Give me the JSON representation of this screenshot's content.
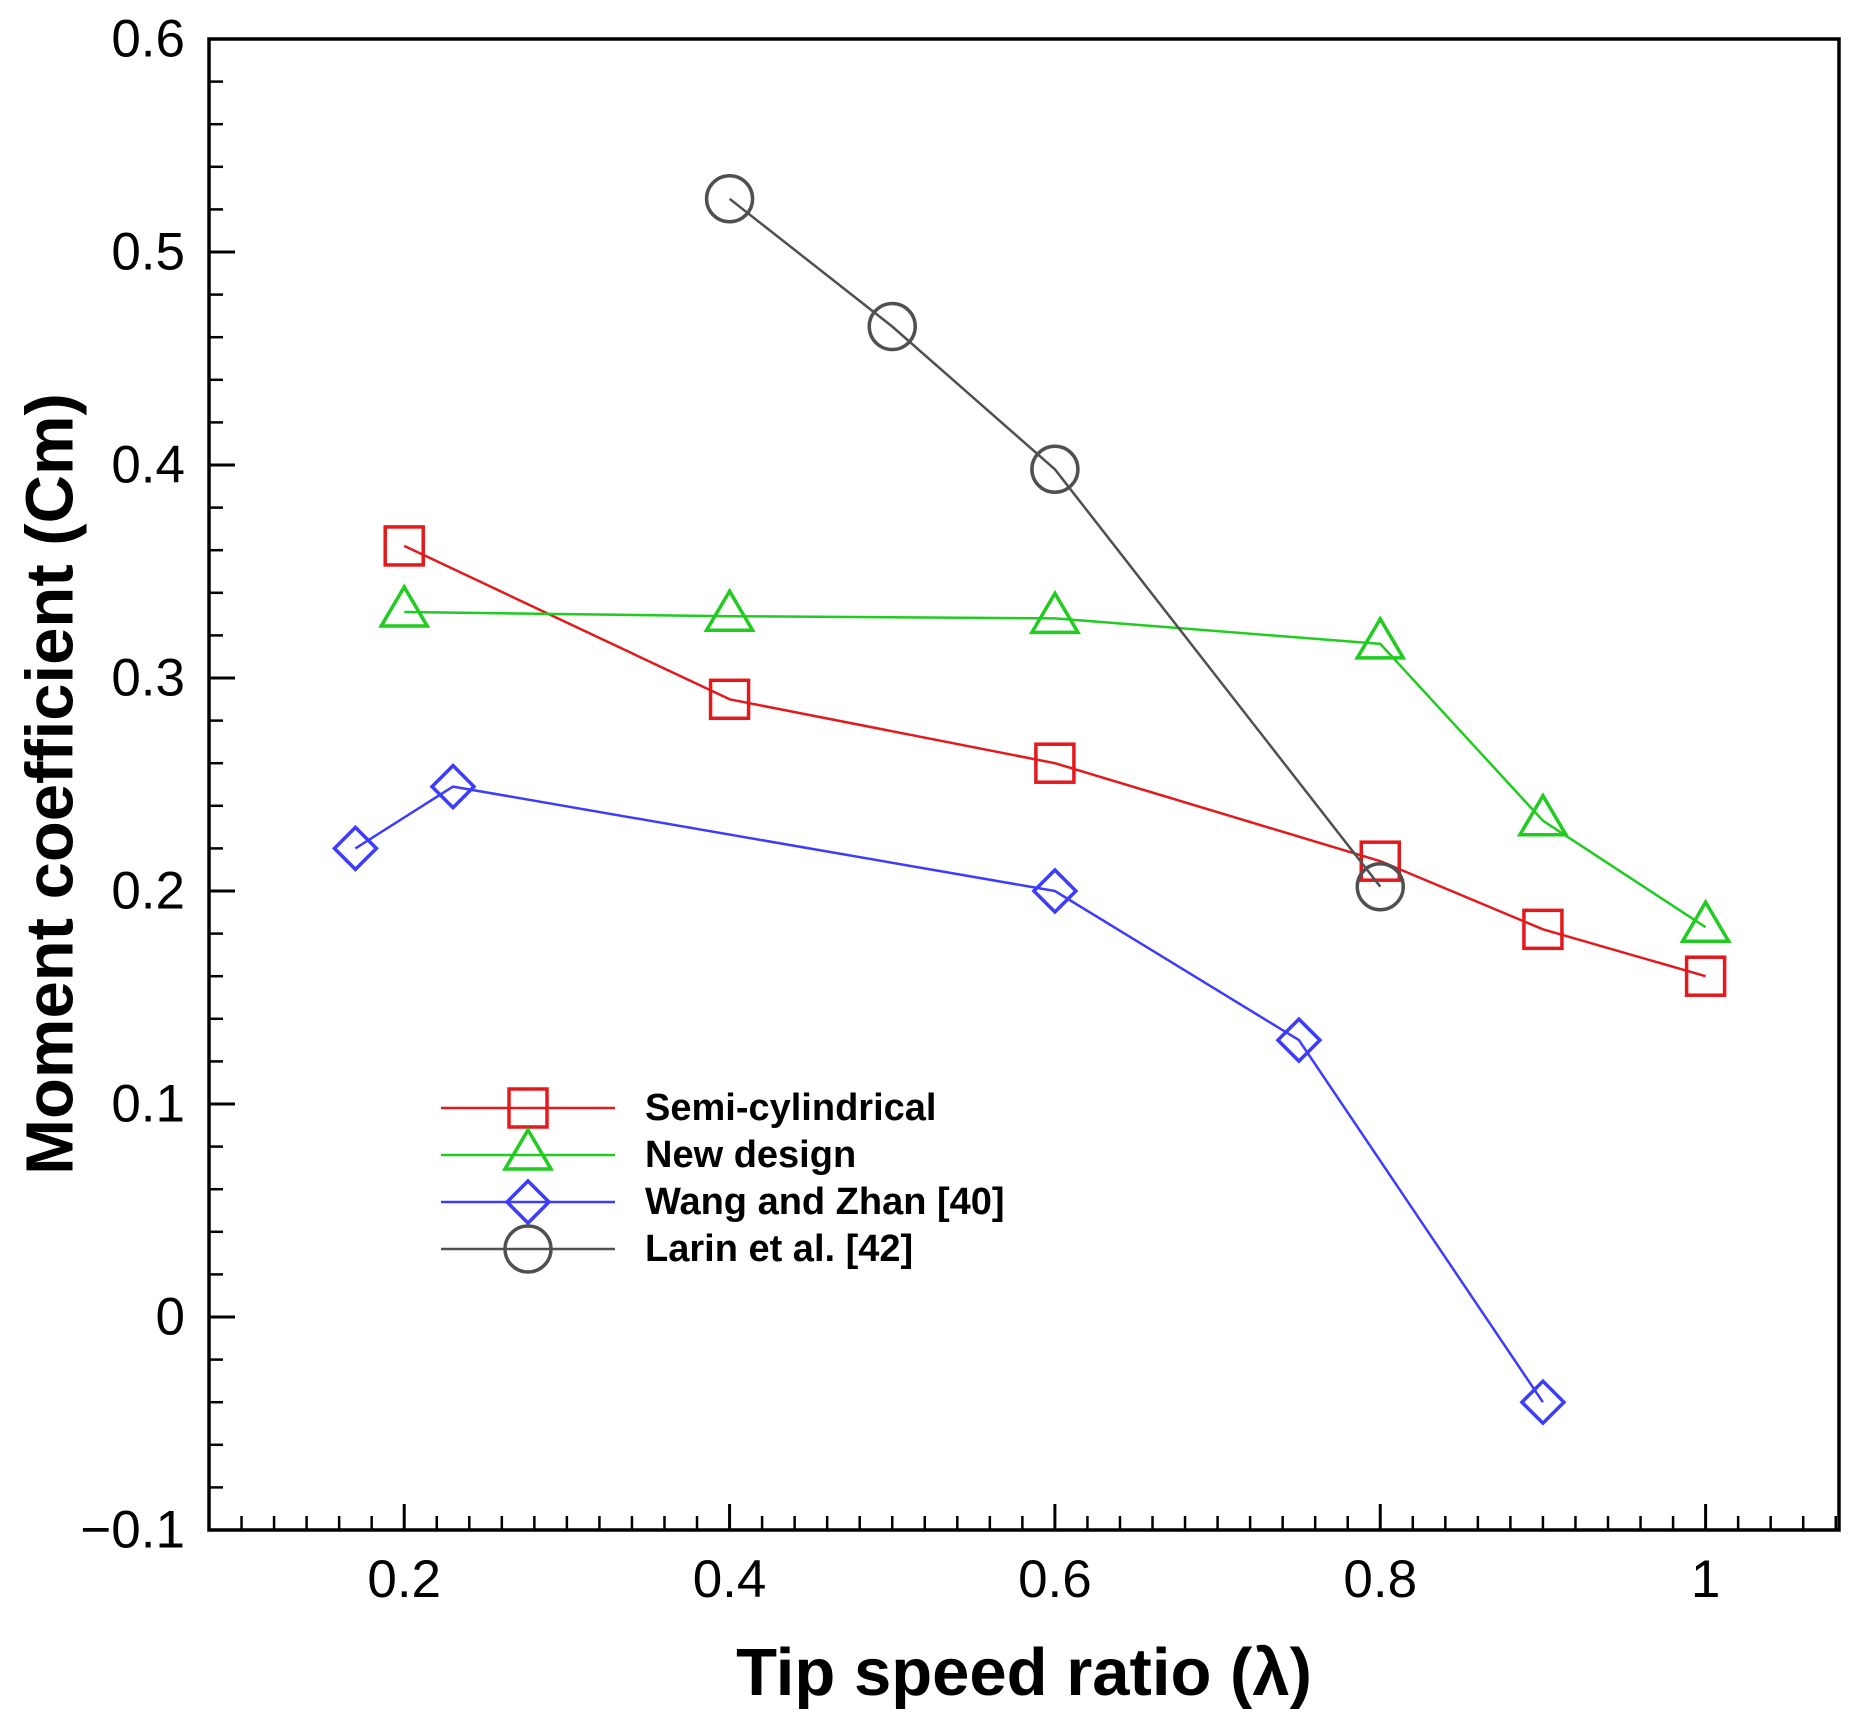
{
  "chart_data": {
    "type": "line",
    "xlabel": "Tip speed ratio (λ)",
    "ylabel": "Moment coefficient (Cm)",
    "xlim": [
      0.08,
      1.082
    ],
    "ylim": [
      -0.1,
      0.6
    ],
    "xticks": [
      0.2,
      0.4,
      0.6,
      0.8,
      1.0
    ],
    "xtick_labels": [
      "0.2",
      "0.4",
      "0.6",
      "0.8",
      "1"
    ],
    "yticks": [
      -0.1,
      0,
      0.1,
      0.2,
      0.3,
      0.4,
      0.5,
      0.6
    ],
    "ytick_labels": [
      "−0.1",
      "0",
      "0.1",
      "0.2",
      "0.3",
      "0.4",
      "0.5",
      "0.6"
    ],
    "x_minor_step": 0.02,
    "y_minor_step": 0.02,
    "grid": false,
    "legend_position": "lower-left",
    "series": [
      {
        "name": "Semi-cylindrical",
        "color": "#e3191c",
        "marker": "square",
        "x": [
          0.2,
          0.4,
          0.6,
          0.8,
          0.9,
          1.0
        ],
        "y": [
          0.362,
          0.29,
          0.26,
          0.214,
          0.182,
          0.16
        ]
      },
      {
        "name": "New design",
        "color": "#1fcc1f",
        "marker": "triangle",
        "x": [
          0.2,
          0.4,
          0.6,
          0.8,
          0.9,
          1.0
        ],
        "y": [
          0.331,
          0.329,
          0.328,
          0.316,
          0.233,
          0.183
        ]
      },
      {
        "name": "Wang and Zhan [40]",
        "color": "#3c3cff",
        "marker": "diamond",
        "x": [
          0.17,
          0.23,
          0.6,
          0.75,
          0.9
        ],
        "y": [
          0.22,
          0.249,
          0.2,
          0.13,
          -0.04
        ]
      },
      {
        "name": "Larin et al. [42]",
        "color": "#505050",
        "marker": "circle",
        "x": [
          0.4,
          0.5,
          0.6,
          0.8
        ],
        "y": [
          0.525,
          0.465,
          0.398,
          0.202
        ]
      }
    ]
  }
}
